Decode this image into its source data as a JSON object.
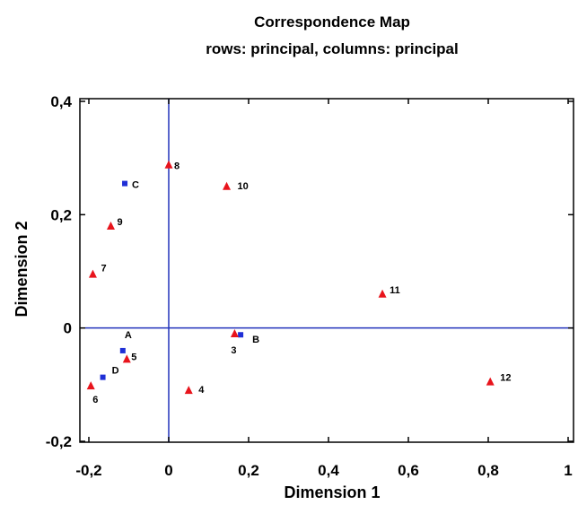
{
  "chart_data": {
    "type": "scatter",
    "title": "Correspondence Map",
    "subtitle": "rows: principal, columns: principal",
    "xlabel": "Dimension 1",
    "ylabel": "Dimension 2",
    "xlim": [
      -0.22,
      1.0
    ],
    "ylim": [
      -0.22,
      0.4
    ],
    "x_ticks": [
      {
        "v": -0.2,
        "label": "-0,2"
      },
      {
        "v": 0.0,
        "label": "0"
      },
      {
        "v": 0.2,
        "label": "0,2"
      },
      {
        "v": 0.4,
        "label": "0,4"
      },
      {
        "v": 0.6,
        "label": "0,6"
      },
      {
        "v": 0.8,
        "label": "0,8"
      },
      {
        "v": 1.0,
        "label": "1"
      }
    ],
    "y_ticks": [
      {
        "v": -0.2,
        "label": "-0,2"
      },
      {
        "v": 0.0,
        "label": "0"
      },
      {
        "v": 0.2,
        "label": "0,2"
      },
      {
        "v": 0.4,
        "label": "0,4"
      }
    ],
    "reference_lines": {
      "x": 0,
      "y": 0,
      "color": "#2233bb"
    },
    "series": [
      {
        "marker": "square",
        "color": "#1f2fd6",
        "points": [
          {
            "label": "A",
            "x": -0.115,
            "y": -0.04
          },
          {
            "label": "B",
            "x": 0.18,
            "y": -0.012
          },
          {
            "label": "C",
            "x": -0.11,
            "y": 0.255
          },
          {
            "label": "D",
            "x": -0.165,
            "y": -0.087
          }
        ]
      },
      {
        "marker": "triangle",
        "color": "#e8141c",
        "points": [
          {
            "label": "3",
            "x": 0.165,
            "y": -0.01
          },
          {
            "label": "4",
            "x": 0.05,
            "y": -0.11
          },
          {
            "label": "5",
            "x": -0.105,
            "y": -0.055
          },
          {
            "label": "6",
            "x": -0.195,
            "y": -0.102
          },
          {
            "label": "7",
            "x": -0.19,
            "y": 0.095
          },
          {
            "label": "8",
            "x": 0.0,
            "y": 0.288
          },
          {
            "label": "9",
            "x": -0.145,
            "y": 0.18
          },
          {
            "label": "10",
            "x": 0.145,
            "y": 0.25
          },
          {
            "label": "11",
            "x": 0.535,
            "y": 0.06
          },
          {
            "label": "12",
            "x": 0.805,
            "y": -0.095
          }
        ]
      }
    ]
  }
}
